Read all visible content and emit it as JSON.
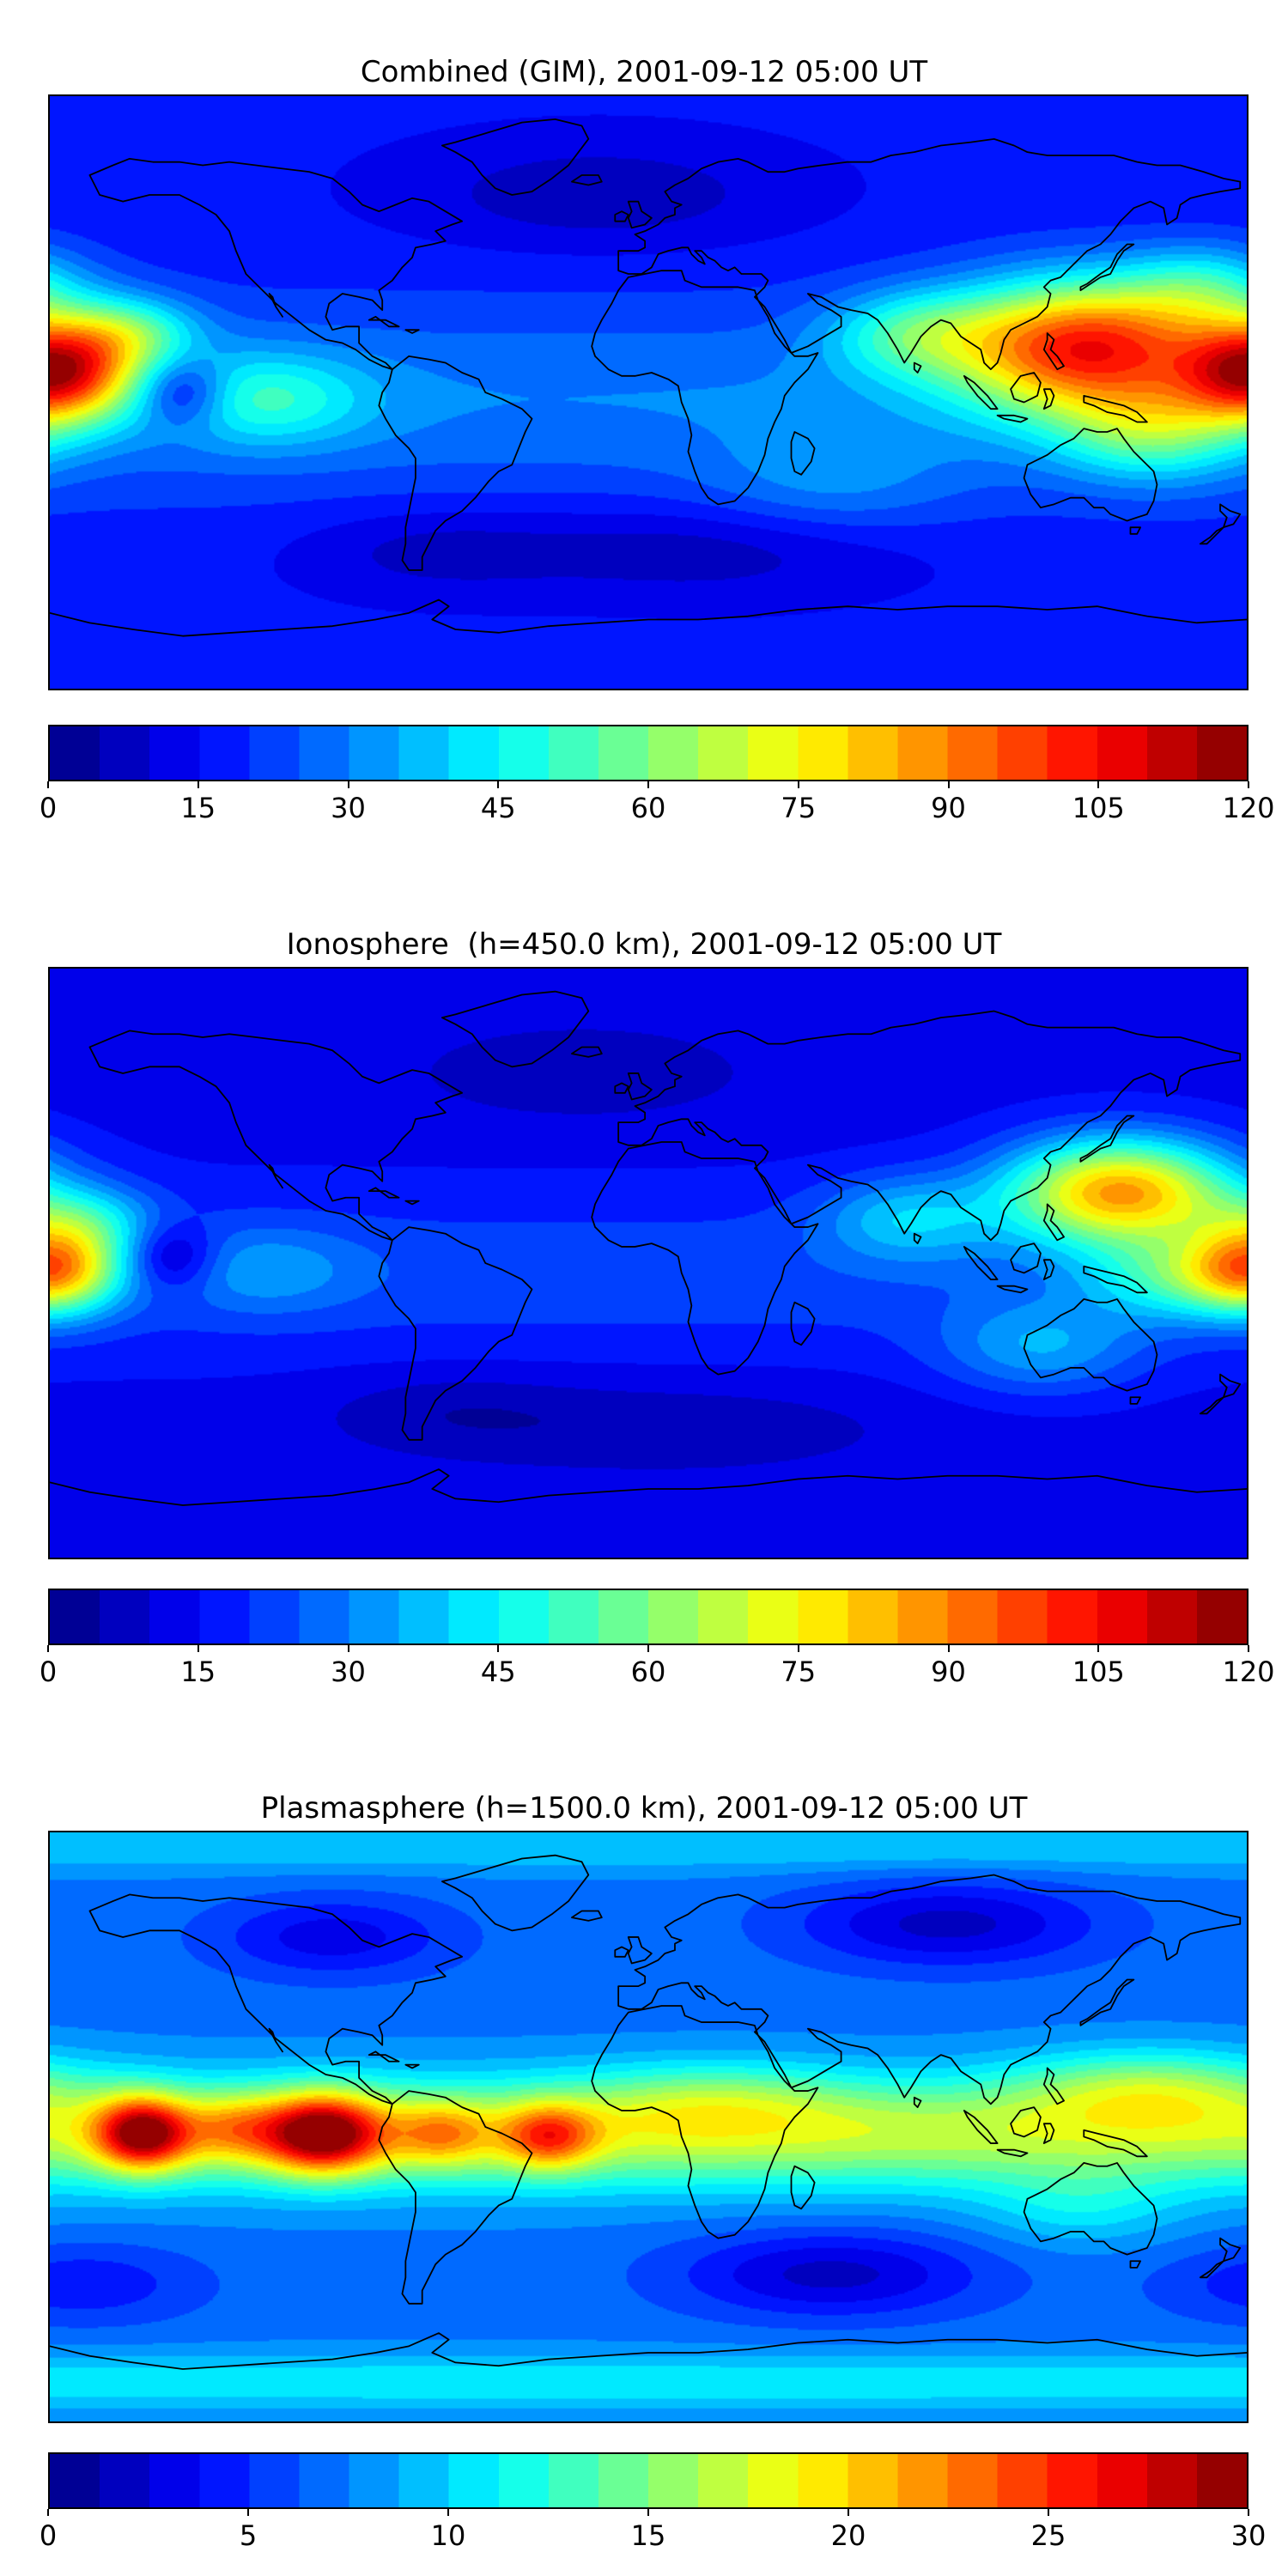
{
  "figure": {
    "kind": "global-TEC-maps",
    "timestamp_label": "2001-09-12 05:00 UT",
    "panel_count": 3
  },
  "chart_data": [
    {
      "type": "heatmap",
      "title": "Combined (GIM), 2001-09-12 05:00 UT",
      "projection": "equirectangular",
      "lon_range": [
        -180,
        180
      ],
      "lat_range": [
        -90,
        90
      ],
      "colormap": "jet",
      "levels": 24,
      "vmin": 0,
      "vmax": 120,
      "colorbar_ticks": [
        0,
        15,
        30,
        45,
        60,
        75,
        90,
        105,
        120
      ],
      "legend_position": "bottom",
      "grid": false,
      "field": {
        "base": 16,
        "blobs": [
          {
            "lon": 0,
            "lat": -2,
            "slon": 900,
            "slat": 30,
            "amp": 14
          },
          {
            "lon": 132,
            "lat": 14,
            "slon": 40,
            "slat": 20,
            "amp": 78
          },
          {
            "lon": 152,
            "lat": -12,
            "slon": 28,
            "slat": 15,
            "amp": 28
          },
          {
            "lon": 168,
            "lat": 32,
            "slon": 24,
            "slat": 13,
            "amp": 22
          },
          {
            "lon": 80,
            "lat": 18,
            "slon": 26,
            "slat": 13,
            "amp": 24
          },
          {
            "lon": -177,
            "lat": 6,
            "slon": 22,
            "slat": 15,
            "amp": 74
          },
          {
            "lon": -156,
            "lat": 18,
            "slon": 20,
            "slat": 11,
            "amp": 28
          },
          {
            "lon": -140,
            "lat": 0,
            "slon": 13,
            "slat": 10,
            "amp": -22
          },
          {
            "lon": -115,
            "lat": -2,
            "slon": 30,
            "slat": 14,
            "amp": 22
          },
          {
            "lon": -15,
            "lat": 60,
            "slon": 55,
            "slat": 16,
            "amp": -10
          },
          {
            "lon": 15,
            "lat": -48,
            "slon": 60,
            "slat": 14,
            "amp": -10
          },
          {
            "lon": -65,
            "lat": -48,
            "slon": 40,
            "slat": 13,
            "amp": -8
          },
          {
            "lon": 55,
            "lat": -28,
            "slon": 38,
            "slat": 16,
            "amp": 10
          }
        ]
      }
    },
    {
      "type": "heatmap",
      "title": "Ionosphere  (h=450.0 km), 2001-09-12 05:00 UT",
      "projection": "equirectangular",
      "lon_range": [
        -180,
        180
      ],
      "lat_range": [
        -90,
        90
      ],
      "colormap": "jet",
      "levels": 24,
      "vmin": 0,
      "vmax": 120,
      "colorbar_ticks": [
        0,
        15,
        30,
        45,
        60,
        75,
        90,
        105,
        120
      ],
      "legend_position": "bottom",
      "grid": false,
      "field": {
        "base": 13,
        "blobs": [
          {
            "lon": 0,
            "lat": -3,
            "slon": 900,
            "slat": 26,
            "amp": 10
          },
          {
            "lon": 142,
            "lat": 22,
            "slon": 34,
            "slat": 16,
            "amp": 70
          },
          {
            "lon": 158,
            "lat": -4,
            "slon": 26,
            "slat": 13,
            "amp": 26
          },
          {
            "lon": 78,
            "lat": 14,
            "slon": 26,
            "slat": 13,
            "amp": 20
          },
          {
            "lon": -178,
            "lat": -2,
            "slon": 19,
            "slat": 13,
            "amp": 58
          },
          {
            "lon": -170,
            "lat": 13,
            "slon": 22,
            "slat": 11,
            "amp": 22
          },
          {
            "lon": -143,
            "lat": 2,
            "slon": 13,
            "slat": 10,
            "amp": -18
          },
          {
            "lon": -115,
            "lat": -2,
            "slon": 28,
            "slat": 13,
            "amp": 12
          },
          {
            "lon": -20,
            "lat": 58,
            "slon": 55,
            "slat": 16,
            "amp": -6
          },
          {
            "lon": 5,
            "lat": -50,
            "slon": 70,
            "slat": 14,
            "amp": -7
          },
          {
            "lon": -60,
            "lat": -45,
            "slon": 38,
            "slat": 12,
            "amp": -6
          },
          {
            "lon": 118,
            "lat": -26,
            "slon": 30,
            "slat": 14,
            "amp": 18
          }
        ]
      }
    },
    {
      "type": "heatmap",
      "title": "Plasmasphere (h=1500.0 km), 2001-09-12 05:00 UT",
      "projection": "equirectangular",
      "lon_range": [
        -180,
        180
      ],
      "lat_range": [
        -90,
        90
      ],
      "colormap": "jet",
      "levels": 24,
      "vmin": 0,
      "vmax": 30,
      "colorbar_ticks": [
        0,
        5,
        10,
        15,
        20,
        25,
        30
      ],
      "legend_position": "bottom",
      "grid": false,
      "field": {
        "base": 7,
        "blobs": [
          {
            "lon": 0,
            "lat": -2,
            "slon": 900,
            "slat": 17,
            "amp": 10
          },
          {
            "lon": -152,
            "lat": -2,
            "slon": 14,
            "slat": 11,
            "amp": 15
          },
          {
            "lon": -98,
            "lat": -2,
            "slon": 18,
            "slat": 12,
            "amp": 16
          },
          {
            "lon": -125,
            "lat": 0,
            "slon": 14,
            "slat": 10,
            "amp": 5
          },
          {
            "lon": -62,
            "lat": -2,
            "slon": 14,
            "slat": 10,
            "amp": 6
          },
          {
            "lon": -30,
            "lat": -3,
            "slon": 14,
            "slat": 10,
            "amp": 9
          },
          {
            "lon": 20,
            "lat": 8,
            "slon": 40,
            "slat": 12,
            "amp": 4
          },
          {
            "lon": 150,
            "lat": 12,
            "slon": 40,
            "slat": 12,
            "amp": 6
          },
          {
            "lon": 130,
            "lat": -25,
            "slon": 30,
            "slat": 12,
            "amp": 3
          },
          {
            "lon": 90,
            "lat": 62,
            "slon": 45,
            "slat": 13,
            "amp": -5
          },
          {
            "lon": -95,
            "lat": 58,
            "slon": 35,
            "slat": 12,
            "amp": -4
          },
          {
            "lon": 55,
            "lat": -45,
            "slon": 45,
            "slat": 13,
            "amp": -5
          },
          {
            "lon": -170,
            "lat": -48,
            "slon": 35,
            "slat": 12,
            "amp": -3
          },
          {
            "lon": 0,
            "lat": -78,
            "slon": 900,
            "slat": 9,
            "amp": 4
          },
          {
            "lon": 0,
            "lat": 86,
            "slon": 900,
            "slat": 8,
            "amp": 3
          }
        ]
      }
    }
  ]
}
